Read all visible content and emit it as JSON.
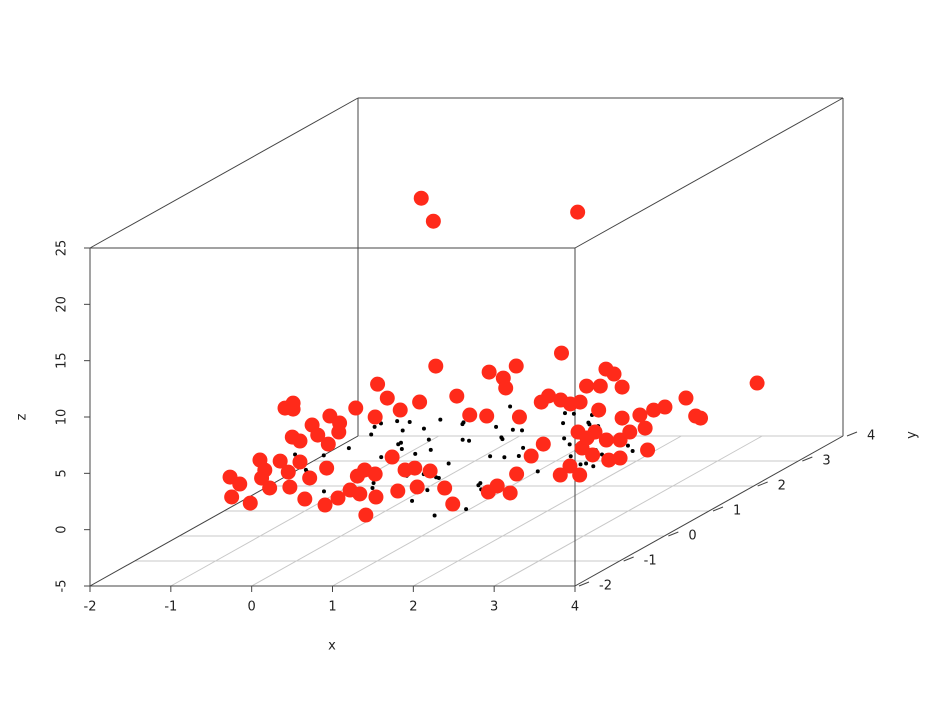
{
  "chart_data": {
    "type": "scatter3d",
    "xlabel": "x",
    "ylabel": "y",
    "zlabel": "z",
    "xlim": [
      -2,
      4
    ],
    "ylim": [
      -2,
      4
    ],
    "zlim": [
      -5,
      25
    ],
    "xticks": [
      -2,
      -1,
      0,
      1,
      2,
      3,
      4
    ],
    "yticks": [
      -2,
      -1,
      0,
      1,
      2,
      3,
      4
    ],
    "zticks": [
      -5,
      0,
      5,
      10,
      15,
      20,
      25
    ],
    "grid": true,
    "series": [
      {
        "color": "#000000",
        "x": [
          0.2,
          1.1,
          -0.3,
          2.0,
          0.8,
          1.5,
          -0.6,
          2.4,
          0.5,
          1.9,
          1.2,
          -0.1,
          2.7,
          0.9,
          1.6,
          0.1,
          2.2,
          -0.8,
          1.3,
          0.6,
          1.8,
          2.9,
          0.3,
          1.0,
          -0.4,
          2.5,
          1.4,
          0.7,
          2.1,
          -0.2,
          1.7,
          0.4,
          2.6,
          1.1,
          -0.7,
          0.9,
          2.3,
          1.5,
          0.0,
          1.9,
          -0.5,
          2.8,
          0.6,
          1.2,
          2.0,
          -0.9,
          1.6,
          0.8,
          2.4,
          0.2,
          1.3,
          3.0,
          -0.3,
          1.0,
          2.2,
          0.5,
          1.8,
          -0.1,
          2.6,
          1.4,
          0.7,
          2.0,
          -0.6,
          1.1,
          2.3,
          0.3,
          1.7,
          -0.2,
          2.5,
          0.9,
          1.5,
          0.1,
          2.1,
          -0.4,
          1.2,
          2.7,
          0.4,
          1.9,
          -0.8,
          1.0
        ],
        "y": [
          1.0,
          0.2,
          1.8,
          -0.5,
          2.4,
          0.9,
          0.3,
          1.5,
          -1.0,
          2.1,
          1.3,
          -0.2,
          0.6,
          2.8,
          -0.8,
          1.1,
          0.0,
          2.2,
          1.7,
          -0.4,
          2.5,
          0.4,
          0.8,
          -1.2,
          1.4,
          1.9,
          -0.6,
          0.7,
          2.6,
          0.1,
          1.0,
          2.0,
          -0.3,
          1.6,
          0.5,
          -0.9,
          1.2,
          2.3,
          0.9,
          -0.1,
          1.8,
          0.3,
          2.7,
          -0.7,
          1.5,
          0.6,
          2.1,
          -1.1,
          0.8,
          1.3,
          -0.5,
          1.1,
          2.4,
          0.2,
          1.7,
          -0.2,
          0.4,
          2.9,
          1.0,
          -0.8,
          1.6,
          2.0,
          0.7,
          -0.4,
          1.4,
          2.2,
          0.0,
          1.9,
          -0.6,
          0.5,
          2.5,
          1.2,
          -1.0,
          0.9,
          2.8,
          0.1,
          1.5,
          -0.3,
          2.1,
          0.6
        ],
        "z": [
          0.5,
          -0.3,
          1.2,
          0.8,
          -0.9,
          1.6,
          0.2,
          -1.1,
          0.9,
          0.4,
          1.8,
          -0.6,
          0.1,
          1.0,
          -1.4,
          0.7,
          2.1,
          -0.2,
          0.6,
          1.3,
          -0.8,
          0.3,
          1.5,
          -0.5,
          0.9,
          -1.2,
          0.4,
          2.0,
          -0.1,
          1.1,
          0.6,
          -0.9,
          1.4,
          0.2,
          -0.4,
          1.7,
          -1.3,
          0.8,
          0.0,
          2.3,
          1.0,
          -0.7,
          0.5,
          1.9,
          -0.2,
          0.9,
          -1.0,
          1.2,
          0.3,
          -0.6,
          1.6,
          0.1,
          -0.8,
          2.2,
          0.7,
          -0.3,
          1.1,
          -1.5,
          0.4,
          0.8,
          -0.1,
          1.3,
          0.6,
          -1.0,
          1.8,
          0.2,
          -0.5,
          0.9,
          1.4,
          -0.9,
          0.3,
          1.7,
          -0.4,
          0.8,
          -1.2,
          0.5,
          2.0,
          -0.2,
          1.0,
          0.1
        ]
      },
      {
        "color": "#ff2a1a",
        "x": [
          -0.14,
          -0.04,
          -0.04,
          -0.05,
          -0.45,
          -0.2,
          -0.1,
          -0.39,
          -0.82,
          -0.7,
          -0.43,
          -0.33,
          -0.8,
          -0.57,
          -0.08,
          0.86,
          0.44,
          0.59,
          0.62,
          -0.1,
          0.42,
          1.28,
          0.88,
          0.02,
          0.18,
          -0.37,
          -0.69,
          -0.91,
          -0.57,
          -0.58,
          -0.13,
          -1.06,
          -0.84,
          -0.71,
          -1.06,
          -0.94,
          -0.73,
          -1.0,
          -0.75,
          -0.59,
          -0.44,
          -0.35,
          -0.26,
          -0.13,
          0.08,
          0.24,
          0.36,
          0.55,
          0.73,
          0.39,
          0.15,
          -0.12,
          -0.32,
          0.83,
          1.27,
          1.04,
          1.25,
          1.38,
          1.54,
          1.62,
          1.8,
          1.95,
          2.38,
          2.59,
          2.73,
          2.9,
          2.43,
          2.56,
          2.76,
          2.9,
          2.28,
          2.16,
          2.4,
          2.49,
          3.24,
          3.02,
          3.21,
          1.27,
          0.51,
          1.07,
          0.35,
          0.38,
          0.91,
          1.06,
          1.18,
          0.82,
          0.55,
          1.38,
          1.55,
          1.62,
          1.72,
          1.82,
          1.3,
          1.53,
          1.82,
          2.04,
          2.21,
          2.35,
          2.61,
          2.73,
          2.79,
          3.49
        ],
        "y": [
          -1,
          -1,
          -1,
          -1,
          -1,
          -1,
          -1,
          -1,
          -1,
          -1,
          -1,
          -1,
          -1,
          -1,
          -1,
          -1,
          1,
          1,
          1,
          1,
          1,
          1,
          1,
          1,
          1,
          1,
          1,
          1,
          1,
          1,
          1,
          1,
          1,
          1,
          1,
          1,
          1,
          1,
          1,
          1,
          1,
          1,
          1,
          1,
          1,
          1,
          1,
          1,
          1,
          1,
          1,
          1,
          1,
          1,
          1,
          1,
          1,
          1,
          1,
          1,
          1,
          1,
          1,
          1,
          1,
          1,
          1,
          1,
          1,
          1,
          1,
          1,
          1,
          1,
          1,
          1,
          1,
          3,
          3,
          3,
          3,
          3,
          3,
          3,
          3,
          3,
          3,
          3,
          3,
          3,
          3,
          3,
          3,
          3,
          3,
          3,
          3,
          3,
          3,
          3,
          3,
          3
        ],
        "z": [
          8.57,
          9.01,
          8.48,
          6.0,
          3.96,
          3.87,
          2.89,
          3.07,
          2.45,
          1.83,
          2.36,
          1.48,
          0.68,
          0.14,
          1.56,
          -0.92,
          22.76,
          20.72,
          7.86,
          6.26,
          4.67,
          7.33,
          5.2,
          5.02,
          3.96,
          4.14,
          3.43,
          2.63,
          2.81,
          2.01,
          3.34,
          1.21,
          1.74,
          0.94,
          -0.65,
          -2.07,
          -1.19,
          -3.94,
          -4.47,
          -3.85,
          -3.14,
          -1.9,
          -1.36,
          -1.72,
          -0.21,
          -1.36,
          -1.19,
          -1.45,
          -2.96,
          -2.87,
          -3.23,
          -3.76,
          -3.49,
          -4.38,
          -3.31,
          3.52,
          3.43,
          -2.78,
          -3.4,
          -1.72,
          -0.12,
          0.94,
          2.01,
          2.01,
          1.3,
          1.3,
          0.59,
          -0.03,
          -0.48,
          -0.3,
          -1.01,
          -1.81,
          -1.81,
          1.48,
          0.41,
          2.01,
          2.36,
          17.09,
          3.43,
          4.58,
          2.36,
          1.48,
          0.77,
          0.41,
          0.06,
          0.23,
          -1.1,
          1.65,
          1.65,
          3.16,
          2.72,
          1.56,
          0.23,
          -0.48,
          -1.19,
          -0.92,
          -0.48,
          -0.21,
          0.59,
          -1.01,
          -1.19,
          1.92
        ]
      }
    ]
  }
}
